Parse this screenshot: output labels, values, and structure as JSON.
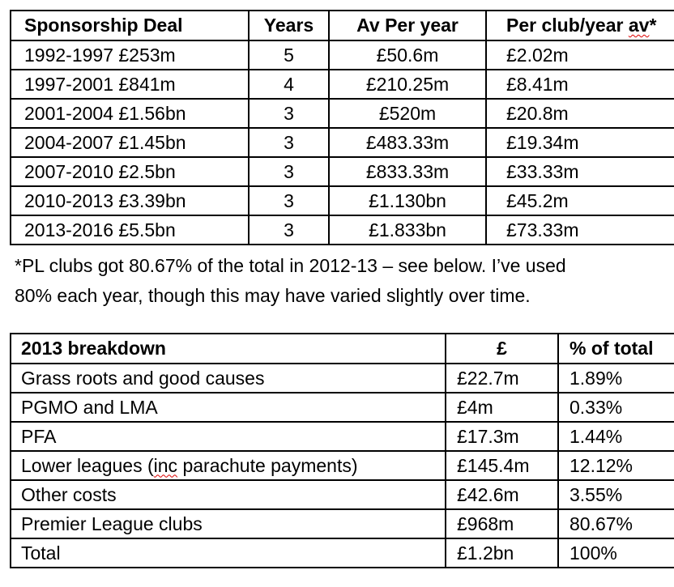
{
  "table1": {
    "headers": [
      "Sponsorship Deal",
      "Years",
      "Av Per year"
    ],
    "header4": {
      "pre": "Per club/year ",
      "misspelled": "av",
      "post": "*"
    },
    "rows": [
      [
        "1992-1997 £253m",
        "5",
        "£50.6m",
        "£2.02m"
      ],
      [
        "1997-2001 £841m",
        "4",
        "£210.25m",
        "£8.41m"
      ],
      [
        "2001-2004 £1.56bn",
        "3",
        "£520m",
        "£20.8m"
      ],
      [
        "2004-2007 £1.45bn",
        "3",
        "£483.33m",
        "£19.34m"
      ],
      [
        "2007-2010 £2.5bn",
        "3",
        "£833.33m",
        "£33.33m"
      ],
      [
        "2010-2013 £3.39bn",
        "3",
        "£1.130bn",
        "£45.2m"
      ],
      [
        "2013-2016 £5.5bn",
        "3",
        "£1.833bn",
        "£73.33m"
      ]
    ]
  },
  "note": {
    "line1": "*PL clubs got 80.67% of the total in 2012-13 – see below. I’ve used",
    "line2": "80% each year, though this may have varied slightly over time."
  },
  "table2": {
    "headers": [
      "2013 breakdown",
      "£",
      "% of total"
    ],
    "rows": [
      [
        "Grass roots and good causes",
        "£22.7m",
        "1.89%"
      ],
      [
        "PGMO and LMA",
        "£4m",
        "0.33%"
      ],
      [
        "PFA",
        "£17.3m",
        "1.44%"
      ],
      [
        "",
        "£145.4m",
        "12.12%"
      ],
      [
        "Other costs",
        "£42.6m",
        "3.55%"
      ],
      [
        "Premier League clubs",
        "£968m",
        "80.67%"
      ],
      [
        "Total",
        "£1.2bn",
        "100%"
      ]
    ],
    "row4": {
      "pre": "Lower leagues (",
      "misspelled": "inc",
      "post": " parachute payments)"
    }
  },
  "colors": {
    "border": "#000000",
    "text": "#000000",
    "background": "#ffffff",
    "spellcheck": "#dd0000"
  }
}
